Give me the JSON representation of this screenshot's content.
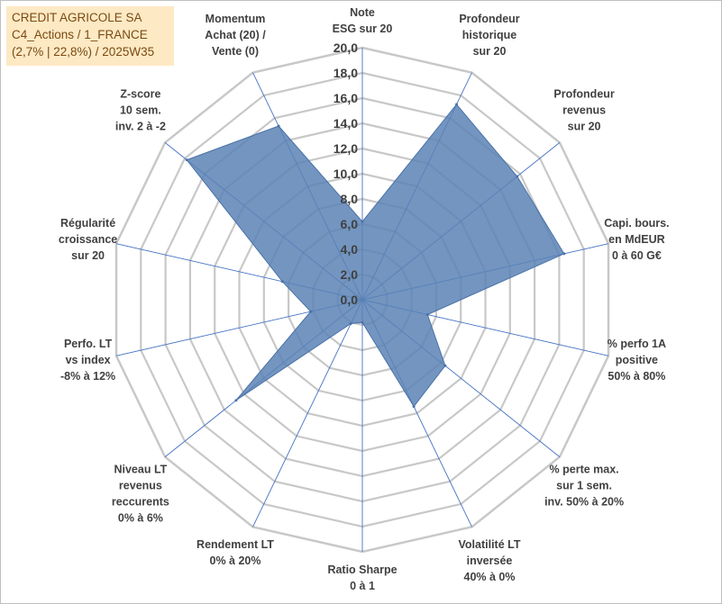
{
  "header": {
    "line1": "CREDIT AGRICOLE SA",
    "line2": "C4_Actions / 1_FRANCE",
    "line3": "(2,7% | 22,8%) / 2025W35"
  },
  "colors": {
    "series_fill": "#5b82b5",
    "series_stroke": "#4a72a8",
    "grid": "#c8c8c8",
    "spoke": "#4472c4",
    "title_bg": "#fde9c4"
  },
  "chart_data": {
    "type": "radar",
    "rmin": 0,
    "rmax": 20,
    "tick_step": 2,
    "tick_labels": [
      "0,0",
      "2,0",
      "4,0",
      "6,0",
      "8,0",
      "10,0",
      "12,0",
      "14,0",
      "16,0",
      "18,0",
      "20,0"
    ],
    "axes": [
      {
        "label": [
          "Note",
          "ESG sur 20"
        ],
        "value": 6.2
      },
      {
        "label": [
          "Profondeur",
          "historique",
          "sur 20"
        ],
        "value": 17.2
      },
      {
        "label": [
          "Profondeur",
          "revenus",
          "sur 20"
        ],
        "value": 15.7
      },
      {
        "label": [
          "Capi. bours.",
          "en MdEUR",
          "0 à 60 G€"
        ],
        "value": 16.4
      },
      {
        "label": [
          "% perfo 1A",
          "positive",
          "50% à 80%"
        ],
        "value": 5.3
      },
      {
        "label": [
          "% perte max.",
          "sur 1 sem.",
          "inv. 50% à 20%"
        ],
        "value": 8.4
      },
      {
        "label": [
          "Volatilité LT",
          "inversée",
          "40% à 0%"
        ],
        "value": 9.4
      },
      {
        "label": [
          "Ratio Sharpe",
          "0 à 1"
        ],
        "value": 1.8
      },
      {
        "label": [
          "Rendement LT",
          "0% à 20%"
        ],
        "value": 2.1
      },
      {
        "label": [
          "Niveau LT",
          "revenus",
          "reccurents",
          "0% à 6%"
        ],
        "value": 12.8
      },
      {
        "label": [
          "Perfo. LT",
          "vs index",
          "-8% à 12%"
        ],
        "value": 4.2
      },
      {
        "label": [
          "Régularité",
          "croissance",
          "sur 20"
        ],
        "value": 6.5
      },
      {
        "label": [
          "Z-score",
          "10 sem.",
          "inv. 2 à -2"
        ],
        "value": 17.8
      },
      {
        "label": [
          "Momentum",
          "Achat (20) /",
          "Vente (0)"
        ],
        "value": 15.3
      }
    ]
  }
}
